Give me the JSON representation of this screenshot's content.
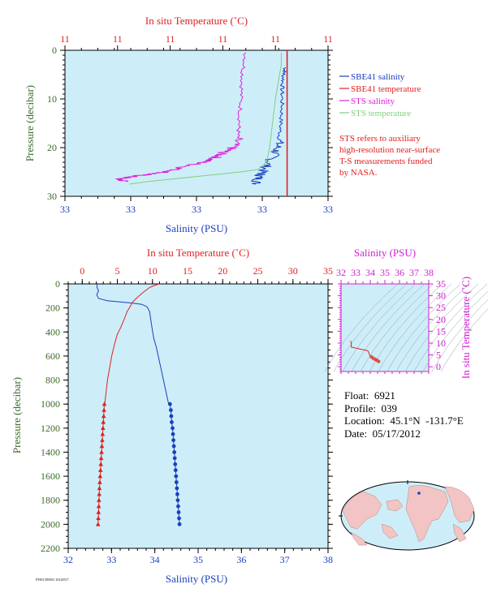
{
  "colors": {
    "salinity": "#1a3fbf",
    "temperature": "#e02020",
    "sts_salinity": "#e020e0",
    "sts_temperature": "#7fcf7f",
    "plot_bg": "#cdeef8",
    "pressure_label": "#3a6a2a",
    "ts_axis": "#d020d0",
    "land": "#f2c4c4",
    "ocean": "#cdeef8"
  },
  "top_panel": {
    "top_axis_title": "In situ Temperature (˚C)",
    "top_ticks": [
      "11",
      "11",
      "11",
      "11",
      "11",
      "11"
    ],
    "bottom_axis_title": "Salinity (PSU)",
    "bottom_ticks": [
      "33",
      "33",
      "33",
      "33",
      "33"
    ],
    "y_axis_title": "Pressure (decibar)",
    "y_ticks": [
      "0",
      "10",
      "20",
      "30"
    ],
    "legend": [
      {
        "label": "SBE41 salinity",
        "color": "#1a3fbf"
      },
      {
        "label": "SBE41 temperature",
        "color": "#e02020"
      },
      {
        "label": "STS salinity",
        "color": "#e020e0"
      },
      {
        "label": "STS temperature",
        "color": "#7fcf7f"
      }
    ],
    "note": [
      "STS refers to auxiliary",
      "high-resolution near-surface",
      "T-S measurements funded",
      "by NASA."
    ]
  },
  "bottom_panel": {
    "top_axis_title": "In situ Temperature (˚C)",
    "top_ticks": [
      "0",
      "5",
      "10",
      "15",
      "20",
      "25",
      "30",
      "35"
    ],
    "bottom_axis_title": "Salinity (PSU)",
    "bottom_ticks": [
      "32",
      "33",
      "34",
      "35",
      "36",
      "37",
      "38"
    ],
    "y_axis_title": "Pressure (decibar)",
    "y_ticks": [
      "0",
      "200",
      "400",
      "600",
      "800",
      "1000",
      "1200",
      "1400",
      "1600",
      "1800",
      "2000",
      "2200"
    ]
  },
  "ts_panel": {
    "top_axis_title": "Salinity (PSU)",
    "top_ticks": [
      "32",
      "33",
      "34",
      "35",
      "36",
      "37",
      "38"
    ],
    "right_axis_title": "In situ Temperature (˚C)",
    "right_ticks": [
      "0",
      "5",
      "10",
      "15",
      "20",
      "25",
      "30",
      "35"
    ]
  },
  "info": {
    "float": "Float:  6921",
    "profile": "Profile:  039",
    "location": "Location:  45.1°N  -131.7°E",
    "date": "Date:  05/17/2012"
  },
  "footer_code": "F5903 ID6921 20120517",
  "chart_data": [
    {
      "type": "line",
      "title": "",
      "xlabel": "Salinity (PSU)",
      "x2label": "In situ Temperature (˚C)",
      "ylabel": "Pressure (decibar)",
      "xlim_salinity": [
        32,
        38
      ],
      "xlim_temperature": [
        -2,
        35
      ],
      "ylim": [
        2200,
        0
      ],
      "series": [
        {
          "name": "salinity",
          "axis": "salinity",
          "points": [
            [
              32.68,
              0
            ],
            [
              32.66,
              20
            ],
            [
              32.7,
              60
            ],
            [
              32.66,
              90
            ],
            [
              32.7,
              120
            ],
            [
              32.9,
              140
            ],
            [
              33.2,
              150
            ],
            [
              33.5,
              160
            ],
            [
              33.7,
              170
            ],
            [
              33.82,
              190
            ],
            [
              33.88,
              230
            ],
            [
              33.9,
              280
            ],
            [
              33.92,
              330
            ],
            [
              33.95,
              400
            ],
            [
              33.98,
              460
            ],
            [
              34.03,
              520
            ],
            [
              34.08,
              600
            ],
            [
              34.14,
              700
            ],
            [
              34.2,
              800
            ],
            [
              34.26,
              900
            ],
            [
              34.32,
              1000
            ]
          ],
          "marked_points": [
            [
              34.35,
              1000
            ],
            [
              34.37,
              1050
            ],
            [
              34.38,
              1100
            ],
            [
              34.39,
              1150
            ],
            [
              34.41,
              1200
            ],
            [
              34.42,
              1250
            ],
            [
              34.43,
              1300
            ],
            [
              34.44,
              1350
            ],
            [
              34.45,
              1400
            ],
            [
              34.46,
              1450
            ],
            [
              34.47,
              1500
            ],
            [
              34.48,
              1550
            ],
            [
              34.49,
              1600
            ],
            [
              34.5,
              1650
            ],
            [
              34.51,
              1700
            ],
            [
              34.52,
              1750
            ],
            [
              34.53,
              1800
            ],
            [
              34.54,
              1850
            ],
            [
              34.55,
              1900
            ],
            [
              34.56,
              1950
            ],
            [
              34.57,
              2000
            ]
          ]
        },
        {
          "name": "temperature",
          "axis": "temperature",
          "points": [
            [
              11.0,
              0
            ],
            [
              10.4,
              10
            ],
            [
              9.6,
              30
            ],
            [
              8.9,
              60
            ],
            [
              8.3,
              90
            ],
            [
              7.7,
              120
            ],
            [
              7.2,
              150
            ],
            [
              6.8,
              190
            ],
            [
              6.4,
              230
            ],
            [
              6.0,
              290
            ],
            [
              5.5,
              360
            ],
            [
              5.0,
              420
            ],
            [
              4.6,
              500
            ],
            [
              4.2,
              600
            ],
            [
              3.9,
              700
            ],
            [
              3.6,
              800
            ],
            [
              3.4,
              900
            ],
            [
              3.2,
              1000
            ]
          ],
          "marked_points": [
            [
              3.15,
              1000
            ],
            [
              3.1,
              1050
            ],
            [
              3.05,
              1100
            ],
            [
              3.0,
              1150
            ],
            [
              2.95,
              1200
            ],
            [
              2.9,
              1250
            ],
            [
              2.85,
              1300
            ],
            [
              2.8,
              1350
            ],
            [
              2.75,
              1400
            ],
            [
              2.7,
              1450
            ],
            [
              2.65,
              1500
            ],
            [
              2.6,
              1550
            ],
            [
              2.55,
              1600
            ],
            [
              2.5,
              1650
            ],
            [
              2.45,
              1700
            ],
            [
              2.42,
              1750
            ],
            [
              2.38,
              1800
            ],
            [
              2.35,
              1850
            ],
            [
              2.32,
              1900
            ],
            [
              2.29,
              1950
            ],
            [
              2.25,
              2000
            ]
          ]
        }
      ]
    },
    {
      "type": "line",
      "title": "",
      "xlabel": "Salinity (PSU)",
      "x2label": "In situ Temperature (˚C)",
      "ylabel": "Pressure (decibar)",
      "ylim": [
        30,
        0
      ],
      "series": [
        {
          "name": "SBE41 salinity",
          "axis": "salinity",
          "style": "noisy",
          "points": [
            [
              32.84,
              3.5
            ],
            [
              32.83,
              5
            ],
            [
              32.82,
              8
            ],
            [
              32.82,
              12
            ],
            [
              32.81,
              16
            ],
            [
              32.8,
              19
            ],
            [
              32.78,
              21
            ],
            [
              32.74,
              23
            ],
            [
              32.7,
              25
            ],
            [
              32.68,
              26
            ],
            [
              32.66,
              27.5
            ]
          ]
        },
        {
          "name": "SBE41 temperature",
          "axis": "temperature",
          "style": "smooth",
          "points": [
            [
              12.8,
              0
            ],
            [
              12.8,
              30
            ]
          ]
        },
        {
          "name": "STS salinity",
          "axis": "salinity",
          "style": "noisy",
          "points": [
            [
              32.6,
              0.5
            ],
            [
              32.58,
              5
            ],
            [
              32.57,
              10
            ],
            [
              32.56,
              15
            ],
            [
              32.55,
              18
            ],
            [
              32.52,
              20
            ],
            [
              32.46,
              21
            ],
            [
              32.42,
              22
            ],
            [
              32.34,
              23
            ],
            [
              32.22,
              24
            ],
            [
              32.12,
              25
            ],
            [
              32.0,
              25.5
            ],
            [
              31.9,
              26
            ],
            [
              31.82,
              26.5
            ],
            [
              31.88,
              27
            ]
          ]
        },
        {
          "name": "STS temperature",
          "axis": "temperature",
          "style": "smooth",
          "points": [
            [
              12.7,
              0.5
            ],
            [
              12.7,
              3
            ],
            [
              12.6,
              10
            ],
            [
              12.55,
              15
            ],
            [
              12.5,
              20
            ],
            [
              12.45,
              23
            ],
            [
              12.3,
              24.5
            ],
            [
              12.0,
              25
            ],
            [
              11.6,
              25.5
            ],
            [
              11.2,
              26
            ],
            [
              10.8,
              26.5
            ],
            [
              10.4,
              27
            ],
            [
              10.1,
              27.5
            ]
          ]
        }
      ]
    },
    {
      "type": "scatter",
      "title": "",
      "xlabel": "Salinity (PSU)",
      "ylabel": "In situ Temperature (˚C)",
      "xlim": [
        32,
        38
      ],
      "ylim": [
        -2,
        35
      ],
      "series": [
        {
          "name": "T-S",
          "points": [
            [
              32.66,
              11.0
            ],
            [
              32.7,
              9.6
            ],
            [
              32.7,
              8.3
            ],
            [
              33.5,
              7.2
            ],
            [
              33.82,
              6.8
            ],
            [
              33.9,
              6.0
            ],
            [
              33.95,
              5.0
            ],
            [
              34.08,
              4.2
            ],
            [
              34.2,
              3.6
            ],
            [
              34.32,
              3.2
            ],
            [
              34.45,
              2.75
            ],
            [
              34.57,
              2.25
            ]
          ]
        }
      ]
    }
  ]
}
